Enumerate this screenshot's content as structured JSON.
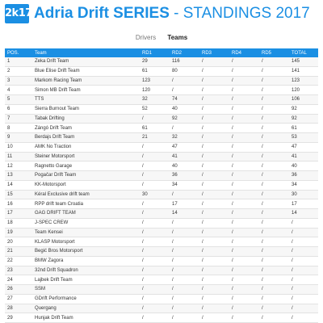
{
  "header": {
    "logo_text": "2k17",
    "brand": "Adria Drift SERIES",
    "subtitle": " - STANDINGS 2017"
  },
  "tabs": [
    {
      "label": "Drivers",
      "active": false
    },
    {
      "label": "Teams",
      "active": true
    }
  ],
  "table": {
    "columns": [
      "POS.",
      "Team",
      "RD1",
      "RD2",
      "RD3",
      "RD4",
      "RD5",
      "TOTAL"
    ],
    "rows": [
      [
        "1",
        "Zeka Drift Team",
        "29",
        "116",
        "/",
        "/",
        "/",
        "145"
      ],
      [
        "2",
        "Blue Elise Drift Team",
        "61",
        "80",
        "/",
        "/",
        "/",
        "141"
      ],
      [
        "3",
        "Markom Racing Team",
        "123",
        "/",
        "/",
        "/",
        "/",
        "123"
      ],
      [
        "4",
        "Simon MB Drift Team",
        "120",
        "/",
        "/",
        "/",
        "/",
        "120"
      ],
      [
        "5",
        "TTS",
        "32",
        "74",
        "/",
        "/",
        "/",
        "106"
      ],
      [
        "6",
        "Sierra Burnout Team",
        "52",
        "40",
        "/",
        "/",
        "/",
        "92"
      ],
      [
        "7",
        "Tabak Drifting",
        "/",
        "92",
        "/",
        "/",
        "/",
        "92"
      ],
      [
        "8",
        "Zángó Drift Team",
        "61",
        "/",
        "/",
        "/",
        "/",
        "61"
      ],
      [
        "9",
        "Berdajs Drift Team",
        "21",
        "32",
        "/",
        "/",
        "/",
        "53"
      ],
      [
        "10",
        "AMK No Traction",
        "/",
        "47",
        "/",
        "/",
        "/",
        "47"
      ],
      [
        "11",
        "Steiner Motorsport",
        "/",
        "41",
        "/",
        "/",
        "/",
        "41"
      ],
      [
        "12",
        "Ragnetto Garage",
        "/",
        "40",
        "/",
        "/",
        "/",
        "40"
      ],
      [
        "13",
        "Pogačar Drift Team",
        "/",
        "36",
        "/",
        "/",
        "/",
        "36"
      ],
      [
        "14",
        "KK-Motorsport",
        "/",
        "34",
        "/",
        "/",
        "/",
        "34"
      ],
      [
        "15",
        "Kéral Exclusive drift team",
        "30",
        "/",
        "/",
        "/",
        "/",
        "30"
      ],
      [
        "16",
        "RPP drift team Croatia",
        "/",
        "17",
        "/",
        "/",
        "/",
        "17"
      ],
      [
        "17",
        "GAG DRIFT TEAM",
        "/",
        "14",
        "/",
        "/",
        "/",
        "14"
      ],
      [
        "18",
        "J-SPEC CREW",
        "/",
        "/",
        "/",
        "/",
        "/",
        "/"
      ],
      [
        "19",
        "Team Kensei",
        "/",
        "/",
        "/",
        "/",
        "/",
        "/"
      ],
      [
        "20",
        "KLASP Motorsport",
        "/",
        "/",
        "/",
        "/",
        "/",
        "/"
      ],
      [
        "21",
        "Begić Bros Motorsport",
        "/",
        "/",
        "/",
        "/",
        "/",
        "/"
      ],
      [
        "22",
        "BMW Zagora",
        "/",
        "/",
        "/",
        "/",
        "/",
        "/"
      ],
      [
        "23",
        "32nd Drift Squadron",
        "/",
        "/",
        "/",
        "/",
        "/",
        "/"
      ],
      [
        "24",
        "Lajbek Drift Team",
        "/",
        "/",
        "/",
        "/",
        "/",
        "/"
      ],
      [
        "26",
        "SSM",
        "/",
        "/",
        "/",
        "/",
        "/",
        "/"
      ],
      [
        "27",
        "GDrift Performance",
        "/",
        "/",
        "/",
        "/",
        "/",
        "/"
      ],
      [
        "28",
        "Quergang",
        "/",
        "/",
        "/",
        "/",
        "/",
        "/"
      ],
      [
        "29",
        "Hunjak Drift Team",
        "/",
        "/",
        "/",
        "/",
        "/",
        "/"
      ]
    ]
  },
  "colors": {
    "accent": "#1b8fe3"
  }
}
